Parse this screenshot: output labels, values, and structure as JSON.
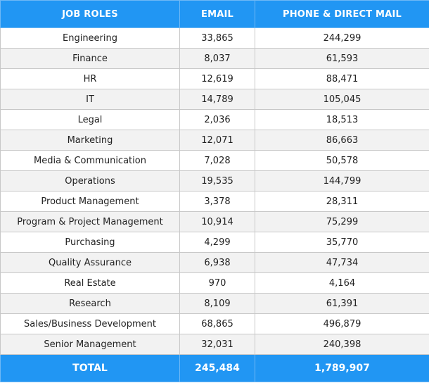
{
  "header": {
    "col1": "JOB ROLES",
    "col2": "EMAIL",
    "col3": "PHONE & DIRECT MAIL"
  },
  "rows": [
    {
      "role": "Engineering",
      "email": "33,865",
      "phone": "244,299"
    },
    {
      "role": "Finance",
      "email": "8,037",
      "phone": "61,593"
    },
    {
      "role": "HR",
      "email": "12,619",
      "phone": "88,471"
    },
    {
      "role": "IT",
      "email": "14,789",
      "phone": "105,045"
    },
    {
      "role": "Legal",
      "email": "2,036",
      "phone": "18,513"
    },
    {
      "role": "Marketing",
      "email": "12,071",
      "phone": "86,663"
    },
    {
      "role": "Media & Communication",
      "email": "7,028",
      "phone": "50,578"
    },
    {
      "role": "Operations",
      "email": "19,535",
      "phone": "144,799"
    },
    {
      "role": "Product Management",
      "email": "3,378",
      "phone": "28,311"
    },
    {
      "role": "Program & Project Management",
      "email": "10,914",
      "phone": "75,299"
    },
    {
      "role": "Purchasing",
      "email": "4,299",
      "phone": "35,770"
    },
    {
      "role": "Quality Assurance",
      "email": "6,938",
      "phone": "47,734"
    },
    {
      "role": "Real Estate",
      "email": "970",
      "phone": "4,164"
    },
    {
      "role": "Research",
      "email": "8,109",
      "phone": "61,391"
    },
    {
      "role": "Sales/Business Development",
      "email": "68,865",
      "phone": "496,879"
    },
    {
      "role": "Senior Management",
      "email": "32,031",
      "phone": "240,398"
    }
  ],
  "total": {
    "label": "TOTAL",
    "email": "245,484",
    "phone": "1,789,907"
  },
  "colors": {
    "header_bg": "#2196f3",
    "header_text": "#ffffff",
    "row_alt_bg": "#f2f2f2"
  }
}
